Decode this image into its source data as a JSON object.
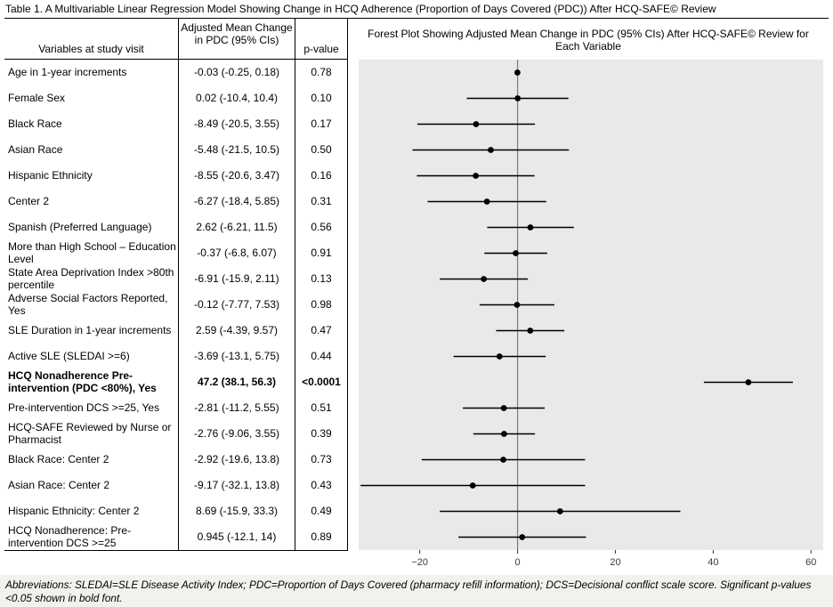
{
  "title": "Table 1. A Multivariable Linear Regression Model Showing Change in HCQ Adherence (Proportion of Days Covered (PDC)) After HCQ-SAFE© Review",
  "table": {
    "headers": {
      "variables": "Variables at study visit",
      "estimate": "Adjusted Mean Change in PDC (95% CIs)",
      "pvalue": "p-value",
      "forest": "Forest Plot Showing Adjusted Mean Change in PDC (95% CIs) After HCQ-SAFE© Review for Each Variable"
    },
    "rows": [
      {
        "variable": "Age in 1-year increments",
        "estimate_text": "-0.03 (-0.25, 0.18)",
        "p": "0.78",
        "bold": false
      },
      {
        "variable": "Female Sex",
        "estimate_text": "0.02 (-10.4, 10.4)",
        "p": "0.10",
        "bold": false
      },
      {
        "variable": "Black Race",
        "estimate_text": "-8.49 (-20.5, 3.55)",
        "p": "0.17",
        "bold": false
      },
      {
        "variable": "Asian Race",
        "estimate_text": "-5.48 (-21.5, 10.5)",
        "p": "0.50",
        "bold": false
      },
      {
        "variable": "Hispanic Ethnicity",
        "estimate_text": "-8.55 (-20.6, 3.47)",
        "p": "0.16",
        "bold": false
      },
      {
        "variable": "Center 2",
        "estimate_text": "-6.27 (-18.4, 5.85)",
        "p": "0.31",
        "bold": false
      },
      {
        "variable": "Spanish (Preferred Language)",
        "estimate_text": "2.62 (-6.21, 11.5)",
        "p": "0.56",
        "bold": false
      },
      {
        "variable": "More than High School – Education Level",
        "estimate_text": "-0.37 (-6.8, 6.07)",
        "p": "0.91",
        "bold": false
      },
      {
        "variable": "State Area Deprivation Index >80th percentile",
        "estimate_text": "-6.91 (-15.9, 2.11)",
        "p": "0.13",
        "bold": false
      },
      {
        "variable": "Adverse Social Factors Reported, Yes",
        "estimate_text": "-0.12 (-7.77, 7.53)",
        "p": "0.98",
        "bold": false
      },
      {
        "variable": "SLE Duration in 1-year increments",
        "estimate_text": "2.59 (-4.39, 9.57)",
        "p": "0.47",
        "bold": false
      },
      {
        "variable": "Active SLE (SLEDAI >=6)",
        "estimate_text": "-3.69 (-13.1, 5.75)",
        "p": "0.44",
        "bold": false
      },
      {
        "variable": "HCQ Nonadherence Pre-intervention (PDC <80%), Yes",
        "estimate_text": "47.2 (38.1, 56.3)",
        "p": "<0.0001",
        "bold": true
      },
      {
        "variable": "Pre-intervention DCS >=25, Yes",
        "estimate_text": "-2.81 (-11.2, 5.55)",
        "p": "0.51",
        "bold": false
      },
      {
        "variable": "HCQ-SAFE Reviewed by Nurse or Pharmacist",
        "estimate_text": "-2.76 (-9.06, 3.55)",
        "p": "0.39",
        "bold": false
      },
      {
        "variable": "Black Race: Center 2",
        "estimate_text": "-2.92 (-19.6, 13.8)",
        "p": "0.73",
        "bold": false
      },
      {
        "variable": "Asian Race: Center 2",
        "estimate_text": "-9.17 (-32.1, 13.8)",
        "p": "0.43",
        "bold": false
      },
      {
        "variable": "Hispanic Ethnicity: Center 2",
        "estimate_text": "8.69 (-15.9, 33.3)",
        "p": "0.49",
        "bold": false
      },
      {
        "variable": "HCQ Nonadherence: Pre-intervention DCS >=25",
        "estimate_text": "0.945 (-12.1, 14)",
        "p": "0.89",
        "bold": false
      }
    ]
  },
  "chart_data": {
    "type": "scatter",
    "subtype": "forest-plot",
    "title": "Forest Plot Showing Adjusted Mean Change in PDC (95% CIs) After HCQ-SAFE© Review for Each Variable",
    "xlabel": "",
    "xlim": [
      -32.5,
      62.5
    ],
    "xticks": [
      -20,
      0,
      20,
      40,
      60
    ],
    "reference_line_x": 0,
    "grid": false,
    "colors": {
      "panel_bg": "#e9e9e9",
      "reference_line": "#5584b4",
      "point": "#000000",
      "ci": "#000000"
    },
    "points": [
      {
        "label": "Age in 1-year increments",
        "estimate": -0.03,
        "ci_low": -0.25,
        "ci_high": 0.18
      },
      {
        "label": "Female Sex",
        "estimate": 0.02,
        "ci_low": -10.4,
        "ci_high": 10.4
      },
      {
        "label": "Black Race",
        "estimate": -8.49,
        "ci_low": -20.5,
        "ci_high": 3.55
      },
      {
        "label": "Asian Race",
        "estimate": -5.48,
        "ci_low": -21.5,
        "ci_high": 10.5
      },
      {
        "label": "Hispanic Ethnicity",
        "estimate": -8.55,
        "ci_low": -20.6,
        "ci_high": 3.47
      },
      {
        "label": "Center 2",
        "estimate": -6.27,
        "ci_low": -18.4,
        "ci_high": 5.85
      },
      {
        "label": "Spanish (Preferred Language)",
        "estimate": 2.62,
        "ci_low": -6.21,
        "ci_high": 11.5
      },
      {
        "label": "More than High School – Education Level",
        "estimate": -0.37,
        "ci_low": -6.8,
        "ci_high": 6.07
      },
      {
        "label": "State Area Deprivation Index >80th percentile",
        "estimate": -6.91,
        "ci_low": -15.9,
        "ci_high": 2.11
      },
      {
        "label": "Adverse Social Factors Reported, Yes",
        "estimate": -0.12,
        "ci_low": -7.77,
        "ci_high": 7.53
      },
      {
        "label": "SLE Duration in 1-year increments",
        "estimate": 2.59,
        "ci_low": -4.39,
        "ci_high": 9.57
      },
      {
        "label": "Active SLE (SLEDAI >=6)",
        "estimate": -3.69,
        "ci_low": -13.1,
        "ci_high": 5.75
      },
      {
        "label": "HCQ Nonadherence Pre-intervention (PDC <80%), Yes",
        "estimate": 47.2,
        "ci_low": 38.1,
        "ci_high": 56.3
      },
      {
        "label": "Pre-intervention DCS >=25, Yes",
        "estimate": -2.81,
        "ci_low": -11.2,
        "ci_high": 5.55
      },
      {
        "label": "HCQ-SAFE Reviewed by Nurse or Pharmacist",
        "estimate": -2.76,
        "ci_low": -9.06,
        "ci_high": 3.55
      },
      {
        "label": "Black Race: Center 2",
        "estimate": -2.92,
        "ci_low": -19.6,
        "ci_high": 13.8
      },
      {
        "label": "Asian Race: Center 2",
        "estimate": -9.17,
        "ci_low": -32.1,
        "ci_high": 13.8
      },
      {
        "label": "Hispanic Ethnicity: Center 2",
        "estimate": 8.69,
        "ci_low": -15.9,
        "ci_high": 33.3
      },
      {
        "label": "HCQ Nonadherence: Pre-intervention DCS >=25",
        "estimate": 0.945,
        "ci_low": -12.1,
        "ci_high": 14
      }
    ]
  },
  "footnote": "Abbreviations: SLEDAI=SLE Disease Activity Index; PDC=Proportion of Days Covered (pharmacy refill information); DCS=Decisional conflict scale score. Significant p-values <0.05 shown in bold font."
}
